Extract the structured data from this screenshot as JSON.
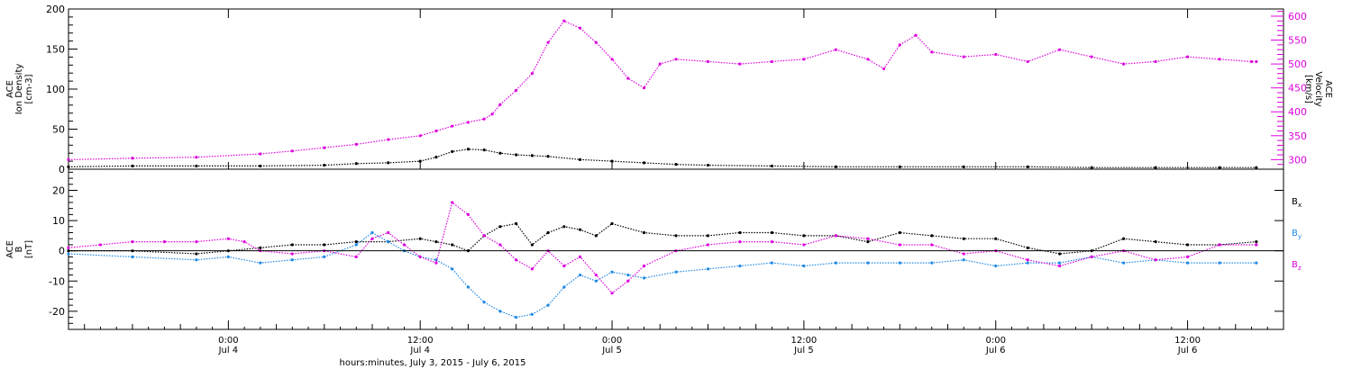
{
  "chart_data": [
    {
      "type": "scatter",
      "panel": "ACE plasma",
      "ylabel_lines": [
        "ACE",
        "Ion Density",
        "[cm-3]"
      ],
      "ylim": [
        0,
        200
      ],
      "yticks": [
        "0",
        "50",
        "100",
        "150",
        "200"
      ],
      "y2label_lines": [
        "ACE",
        "Velocity",
        "[km/s]"
      ],
      "y2lim": [
        280,
        615
      ],
      "y2ticks": [
        "300",
        "350",
        "400",
        "450",
        "500",
        "550",
        "600"
      ],
      "x_hours_range": [
        -10,
        66
      ],
      "series": [
        {
          "role": "density",
          "color": "#000000",
          "axis": "left",
          "x": [
            -10,
            -6,
            -2,
            2,
            6,
            8,
            10,
            12,
            13,
            14,
            15,
            16,
            17,
            18,
            19,
            20,
            22,
            24,
            26,
            28,
            30,
            34,
            38,
            42,
            46,
            50,
            54,
            58,
            62,
            64.3
          ],
          "y": [
            3,
            4,
            4,
            4,
            5,
            7,
            8,
            10,
            15,
            22,
            25,
            24,
            20,
            18,
            17,
            16,
            12,
            10,
            8,
            6,
            5,
            4,
            3,
            3,
            3,
            3,
            2,
            2,
            2,
            2
          ]
        },
        {
          "role": "velocity",
          "color": "#dd00dd",
          "axis": "right",
          "x": [
            -10,
            -6,
            -2,
            2,
            4,
            6,
            8,
            10,
            12,
            13,
            14,
            15,
            16,
            16.5,
            17,
            18,
            19,
            20,
            21,
            22,
            23,
            24,
            25,
            26,
            27,
            28,
            30,
            32,
            34,
            36,
            38,
            40,
            41,
            42,
            43,
            44,
            46,
            48,
            50,
            52,
            54,
            56,
            58,
            60,
            62,
            64,
            64.3
          ],
          "y": [
            300,
            303,
            305,
            312,
            318,
            325,
            332,
            342,
            350,
            360,
            370,
            378,
            385,
            395,
            415,
            445,
            480,
            545,
            590,
            575,
            545,
            510,
            470,
            450,
            500,
            510,
            505,
            500,
            505,
            510,
            530,
            510,
            490,
            540,
            560,
            525,
            515,
            520,
            505,
            530,
            515,
            500,
            505,
            515,
            510,
            505,
            505
          ]
        }
      ]
    },
    {
      "type": "scatter",
      "panel": "ACE magnetic field",
      "ylabel_lines": [
        "ACE",
        "B",
        "[nT]"
      ],
      "ylim": [
        -26,
        27
      ],
      "yticks": [
        "-20",
        "-10",
        "0",
        "10",
        "20"
      ],
      "x_hours_range": [
        -10,
        66
      ],
      "xticks": [
        {
          "line1": "0:00",
          "line2": "Jul 4"
        },
        {
          "line1": "12:00",
          "line2": "Jul 4"
        },
        {
          "line1": "0:00",
          "line2": "Jul 5"
        },
        {
          "line1": "12:00",
          "line2": "Jul 5"
        },
        {
          "line1": "0:00",
          "line2": "Jul 6"
        },
        {
          "line1": "12:00",
          "line2": "Jul 6"
        }
      ],
      "xlabel": "hours:minutes, July  3, 2015 - July  6, 2015",
      "legend": [
        {
          "label": "B",
          "sub": "x",
          "color": "#000000"
        },
        {
          "label": "B",
          "sub": "y",
          "color": "#1e88e5"
        },
        {
          "label": "B",
          "sub": "z",
          "color": "#dd00dd"
        }
      ],
      "series": [
        {
          "role": "Bx",
          "color": "#000000",
          "x": [
            -10,
            -6,
            -2,
            0,
            2,
            4,
            6,
            8,
            10,
            12,
            13,
            14,
            15,
            16,
            17,
            18,
            19,
            20,
            21,
            22,
            23,
            24,
            26,
            28,
            30,
            32,
            34,
            36,
            38,
            40,
            42,
            44,
            46,
            48,
            50,
            52,
            54,
            56,
            58,
            60,
            62,
            64.3
          ],
          "y": [
            0,
            0,
            -1,
            0,
            1,
            2,
            2,
            3,
            3,
            4,
            3,
            2,
            0,
            5,
            8,
            9,
            2,
            6,
            8,
            7,
            5,
            9,
            6,
            5,
            5,
            6,
            6,
            5,
            5,
            3,
            6,
            5,
            4,
            4,
            1,
            -1,
            0,
            4,
            3,
            2,
            2,
            3
          ]
        },
        {
          "role": "By",
          "color": "#1e88e5",
          "x": [
            -10,
            -6,
            -2,
            0,
            2,
            4,
            6,
            8,
            9,
            10,
            11,
            12,
            13,
            14,
            15,
            16,
            17,
            18,
            19,
            20,
            21,
            22,
            23,
            24,
            25,
            26,
            28,
            30,
            32,
            34,
            36,
            38,
            40,
            42,
            44,
            46,
            48,
            50,
            52,
            54,
            56,
            58,
            60,
            62,
            64.3
          ],
          "y": [
            -1,
            -2,
            -3,
            -2,
            -4,
            -3,
            -2,
            2,
            6,
            3,
            0,
            -2,
            -3,
            -6,
            -12,
            -17,
            -20,
            -22,
            -21,
            -18,
            -12,
            -8,
            -10,
            -7,
            -8,
            -9,
            -7,
            -6,
            -5,
            -4,
            -5,
            -4,
            -4,
            -4,
            -4,
            -3,
            -5,
            -4,
            -4,
            -2,
            -4,
            -3,
            -4,
            -4,
            -4
          ]
        },
        {
          "role": "Bz",
          "color": "#dd00dd",
          "x": [
            -10,
            -8,
            -6,
            -4,
            -2,
            0,
            1,
            2,
            4,
            6,
            8,
            9,
            10,
            11,
            12,
            13,
            14,
            15,
            16,
            17,
            18,
            19,
            20,
            21,
            22,
            23,
            24,
            25,
            26,
            28,
            30,
            32,
            34,
            36,
            38,
            40,
            42,
            44,
            46,
            48,
            50,
            52,
            54,
            56,
            58,
            60,
            62,
            64.3
          ],
          "y": [
            1,
            2,
            3,
            3,
            3,
            4,
            3,
            0,
            -1,
            0,
            -2,
            4,
            6,
            2,
            -2,
            -4,
            16,
            12,
            5,
            2,
            -3,
            -6,
            0,
            -5,
            -2,
            -8,
            -14,
            -10,
            -5,
            0,
            2,
            3,
            3,
            2,
            5,
            4,
            2,
            2,
            -1,
            0,
            -3,
            -5,
            -2,
            0,
            -3,
            -2,
            2,
            2
          ]
        }
      ]
    }
  ]
}
